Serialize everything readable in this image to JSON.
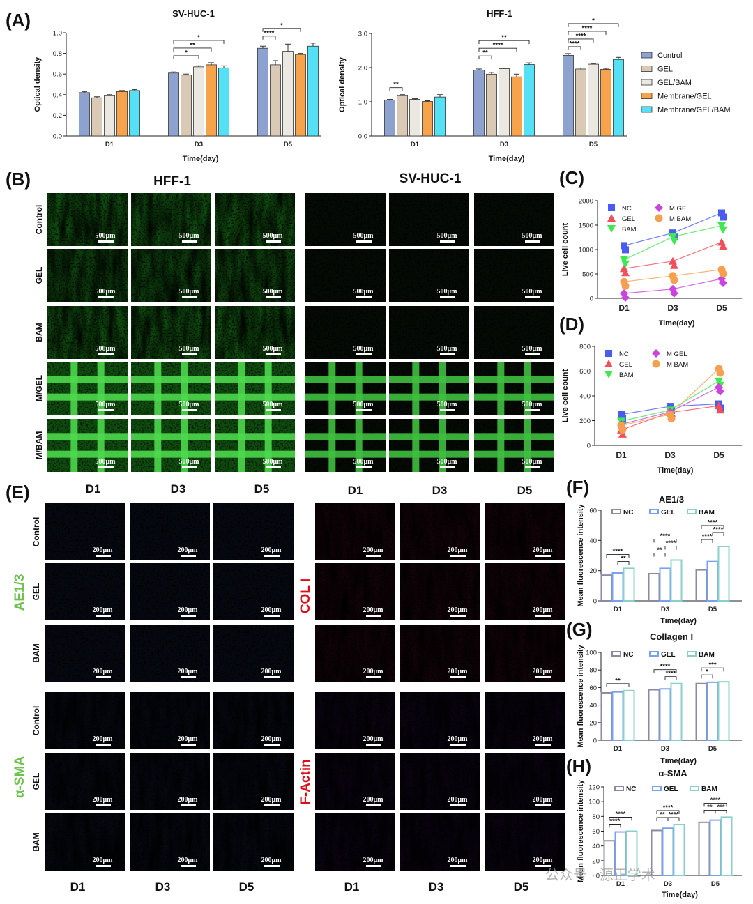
{
  "panel_letters": {
    "A": "(A)",
    "B": "(B)",
    "C": "(C)",
    "D": "(D)",
    "E": "(E)",
    "F": "(F)",
    "G": "(G)",
    "H": "(H)"
  },
  "colors": {
    "Control": "#8ea2cf",
    "GEL": "#d9c9b5",
    "GEL/BAM": "#ebe8e2",
    "Membrane/GEL": "#f7a34b",
    "Membrane/GEL/BAM": "#54e0f5",
    "NC": "#4a5cf0",
    "GEL_line": "#f0505a",
    "BAM_line": "#3ee850",
    "MGEL": "#cc44e0",
    "MBAM": "#f5a050",
    "bar_NC": "#8c8aa0",
    "bar_GEL": "#7aa0f0",
    "bar_BAM": "#8ad0c8"
  },
  "legend_A": [
    "Control",
    "GEL",
    "GEL/BAM",
    "Membrane/GEL",
    "Membrane/GEL/BAM"
  ],
  "micro": {
    "hff_title": "HFF-1",
    "svhuc_title": "SV-HUC-1",
    "rows_B": [
      "Control",
      "GEL",
      "BAM",
      "M/GEL",
      "M/BAM"
    ],
    "scale_B": "500μm",
    "scale_E": "200μm",
    "cols_E": [
      "D1",
      "D3",
      "D5"
    ],
    "rows_E": [
      "Control",
      "GEL",
      "BAM"
    ],
    "stain_ae": "AE1/3",
    "stain_sma": "α-SMA",
    "stain_col": "COL I",
    "stain_act": "F-Actin"
  },
  "watermark": "公众号 · 源正学术",
  "chart_data": [
    {
      "id": "A1",
      "type": "bar",
      "title": "SV-HUC-1",
      "xlabel": "Time(day)",
      "ylabel": "Optical density",
      "categories": [
        "D1",
        "D3",
        "D5"
      ],
      "ylim": [
        0,
        1.0
      ],
      "yticks": [
        "0.0",
        "0.2",
        "0.4",
        "0.6",
        "0.8",
        "1.0"
      ],
      "series": [
        {
          "name": "Control",
          "values": [
            0.42,
            0.61,
            0.85
          ],
          "err": [
            0.01,
            0.01,
            0.02
          ]
        },
        {
          "name": "GEL",
          "values": [
            0.37,
            0.59,
            0.69
          ],
          "err": [
            0.01,
            0.01,
            0.04
          ]
        },
        {
          "name": "GEL/BAM",
          "values": [
            0.39,
            0.67,
            0.82
          ],
          "err": [
            0.01,
            0.01,
            0.07
          ]
        },
        {
          "name": "Membrane/GEL",
          "values": [
            0.43,
            0.69,
            0.79
          ],
          "err": [
            0.01,
            0.02,
            0.01
          ]
        },
        {
          "name": "Membrane/GEL/BAM",
          "values": [
            0.44,
            0.66,
            0.87
          ],
          "err": [
            0.01,
            0.02,
            0.03
          ]
        }
      ],
      "sig": [
        {
          "cat": 1,
          "from": 0,
          "to": 2,
          "label": "*",
          "level": 0
        },
        {
          "cat": 1,
          "from": 0,
          "to": 3,
          "label": "**",
          "level": 1
        },
        {
          "cat": 1,
          "from": 0,
          "to": 4,
          "label": "*",
          "level": 2
        },
        {
          "cat": 2,
          "from": 0,
          "to": 1,
          "label": "****",
          "level": 0
        },
        {
          "cat": 2,
          "from": 0,
          "to": 3,
          "label": "*",
          "level": 1
        }
      ]
    },
    {
      "id": "A2",
      "type": "bar",
      "title": "HFF-1",
      "xlabel": "Time(day)",
      "ylabel": "Optical density",
      "categories": [
        "D1",
        "D3",
        "D5"
      ],
      "ylim": [
        0,
        3.0
      ],
      "yticks": [
        "0.0",
        "1.0",
        "2.0",
        "3.0"
      ],
      "series": [
        {
          "name": "Control",
          "values": [
            1.05,
            1.93,
            2.36
          ],
          "err": [
            0.02,
            0.03,
            0.05
          ]
        },
        {
          "name": "GEL",
          "values": [
            1.18,
            1.81,
            1.96
          ],
          "err": [
            0.03,
            0.05,
            0.03
          ]
        },
        {
          "name": "GEL/BAM",
          "values": [
            1.07,
            1.97,
            2.1
          ],
          "err": [
            0.02,
            0.02,
            0.02
          ]
        },
        {
          "name": "Membrane/GEL",
          "values": [
            1.01,
            1.73,
            1.95
          ],
          "err": [
            0.02,
            0.08,
            0.03
          ]
        },
        {
          "name": "Membrane/GEL/BAM",
          "values": [
            1.14,
            2.09,
            2.24
          ],
          "err": [
            0.07,
            0.05,
            0.06
          ]
        }
      ],
      "sig": [
        {
          "cat": 0,
          "from": 0,
          "to": 1,
          "label": "**",
          "level": 0
        },
        {
          "cat": 1,
          "from": 0,
          "to": 1,
          "label": "**",
          "level": 0
        },
        {
          "cat": 1,
          "from": 0,
          "to": 3,
          "label": "****",
          "level": 1
        },
        {
          "cat": 1,
          "from": 0,
          "to": 4,
          "label": "**",
          "level": 2
        },
        {
          "cat": 2,
          "from": 0,
          "to": 1,
          "label": "****",
          "level": 0
        },
        {
          "cat": 2,
          "from": 0,
          "to": 2,
          "label": "****",
          "level": 1
        },
        {
          "cat": 2,
          "from": 0,
          "to": 3,
          "label": "****",
          "level": 2
        },
        {
          "cat": 2,
          "from": 0,
          "to": 4,
          "label": "*",
          "level": 3
        }
      ]
    },
    {
      "id": "C",
      "type": "line",
      "xlabel": "Time(day)",
      "ylabel": "Live cell count",
      "categories": [
        "D1",
        "D3",
        "D5"
      ],
      "ylim": [
        0,
        2000
      ],
      "yticks": [
        "0",
        "500",
        "1000",
        "1500",
        "2000"
      ],
      "series": [
        {
          "name": "NC",
          "values": [
            1080,
            1340,
            1750
          ]
        },
        {
          "name": "GEL",
          "values": [
            610,
            760,
            1150
          ]
        },
        {
          "name": "BAM",
          "values": [
            790,
            1260,
            1490
          ]
        },
        {
          "name": "M GEL",
          "values": [
            100,
            190,
            400
          ]
        },
        {
          "name": "M BAM",
          "values": [
            340,
            460,
            590
          ]
        }
      ]
    },
    {
      "id": "D",
      "type": "line",
      "xlabel": "Time(day)",
      "ylabel": "Live cell count",
      "categories": [
        "D1",
        "D3",
        "D5"
      ],
      "ylim": [
        0,
        800
      ],
      "yticks": [
        "0",
        "200",
        "400",
        "600",
        "800"
      ],
      "series": [
        {
          "name": "NC",
          "values": [
            250,
            315,
            335
          ]
        },
        {
          "name": "GEL",
          "values": [
            125,
            265,
            320
          ]
        },
        {
          "name": "BAM",
          "values": [
            195,
            285,
            520
          ]
        },
        {
          "name": "M GEL",
          "values": [
            170,
            270,
            470
          ]
        },
        {
          "name": "M BAM",
          "values": [
            160,
            250,
            620
          ]
        }
      ]
    },
    {
      "id": "F",
      "type": "bar",
      "title": "AE1/3",
      "xlabel": "Time(day)",
      "ylabel": "Mean fluorescence intensity",
      "categories": [
        "D1",
        "D3",
        "D5"
      ],
      "ylim": [
        0,
        60
      ],
      "yticks": [
        "0",
        "20",
        "40",
        "60"
      ],
      "series": [
        {
          "name": "NC",
          "values": [
            17,
            18,
            20.5
          ]
        },
        {
          "name": "GEL",
          "values": [
            18.5,
            21.5,
            26
          ]
        },
        {
          "name": "BAM",
          "values": [
            21.5,
            27,
            36
          ]
        }
      ],
      "sig": [
        {
          "cat": 0,
          "from": 1,
          "to": 2,
          "label": "**",
          "level": 0
        },
        {
          "cat": 0,
          "from": 0,
          "to": 2,
          "label": "****",
          "level": 1
        },
        {
          "cat": 1,
          "from": 0,
          "to": 1,
          "label": "**",
          "level": 0
        },
        {
          "cat": 1,
          "from": 1,
          "to": 2,
          "label": "****",
          "level": 1
        },
        {
          "cat": 1,
          "from": 0,
          "to": 2,
          "label": "****",
          "level": 2
        },
        {
          "cat": 2,
          "from": 0,
          "to": 1,
          "label": "****",
          "level": 0
        },
        {
          "cat": 2,
          "from": 1,
          "to": 2,
          "label": "****",
          "level": 1
        },
        {
          "cat": 2,
          "from": 0,
          "to": 2,
          "label": "****",
          "level": 2
        }
      ]
    },
    {
      "id": "G",
      "type": "bar",
      "title": "Collagen I",
      "xlabel": "Time(day)",
      "ylabel": "Mean fluorescence intensity",
      "categories": [
        "D1",
        "D3",
        "D5"
      ],
      "ylim": [
        0,
        100
      ],
      "yticks": [
        "0",
        "20",
        "40",
        "60",
        "80",
        "100"
      ],
      "series": [
        {
          "name": "NC",
          "values": [
            54,
            57.5,
            64.5
          ]
        },
        {
          "name": "GEL",
          "values": [
            55,
            58.5,
            66
          ]
        },
        {
          "name": "BAM",
          "values": [
            56.5,
            64.5,
            66.5
          ]
        }
      ],
      "sig": [
        {
          "cat": 0,
          "from": 0,
          "to": 2,
          "label": "**",
          "level": 0
        },
        {
          "cat": 1,
          "from": 1,
          "to": 2,
          "label": "****",
          "level": 0
        },
        {
          "cat": 1,
          "from": 0,
          "to": 2,
          "label": "****",
          "level": 1
        },
        {
          "cat": 2,
          "from": 0,
          "to": 1,
          "label": "*",
          "level": 0
        },
        {
          "cat": 2,
          "from": 0,
          "to": 2,
          "label": "***",
          "level": 1
        }
      ]
    },
    {
      "id": "H",
      "type": "bar",
      "title": "α-SMA",
      "xlabel": "Time(day)",
      "ylabel": "Mean fluorescence intensity",
      "categories": [
        "D1",
        "D3",
        "D5"
      ],
      "ylim": [
        0,
        120
      ],
      "yticks": [
        "0",
        "20",
        "40",
        "60",
        "80",
        "100",
        "120"
      ],
      "series": [
        {
          "name": "NC",
          "values": [
            47,
            61,
            72
          ]
        },
        {
          "name": "GEL",
          "values": [
            59,
            64,
            75
          ]
        },
        {
          "name": "BAM",
          "values": [
            60,
            69,
            79
          ]
        }
      ],
      "sig": [
        {
          "cat": 0,
          "from": 0,
          "to": 1,
          "label": "****",
          "level": 0
        },
        {
          "cat": 0,
          "from": 0,
          "to": 2,
          "label": "****",
          "level": 1
        },
        {
          "cat": 1,
          "from": 0,
          "to": 1,
          "label": "**",
          "level": 0
        },
        {
          "cat": 1,
          "from": 1,
          "to": 2,
          "label": "****",
          "level": 0
        },
        {
          "cat": 1,
          "from": 0,
          "to": 2,
          "label": "****",
          "level": 1
        },
        {
          "cat": 2,
          "from": 0,
          "to": 1,
          "label": "**",
          "level": 0
        },
        {
          "cat": 2,
          "from": 1,
          "to": 2,
          "label": "***",
          "level": 0
        },
        {
          "cat": 2,
          "from": 0,
          "to": 2,
          "label": "****",
          "level": 1
        }
      ]
    }
  ]
}
